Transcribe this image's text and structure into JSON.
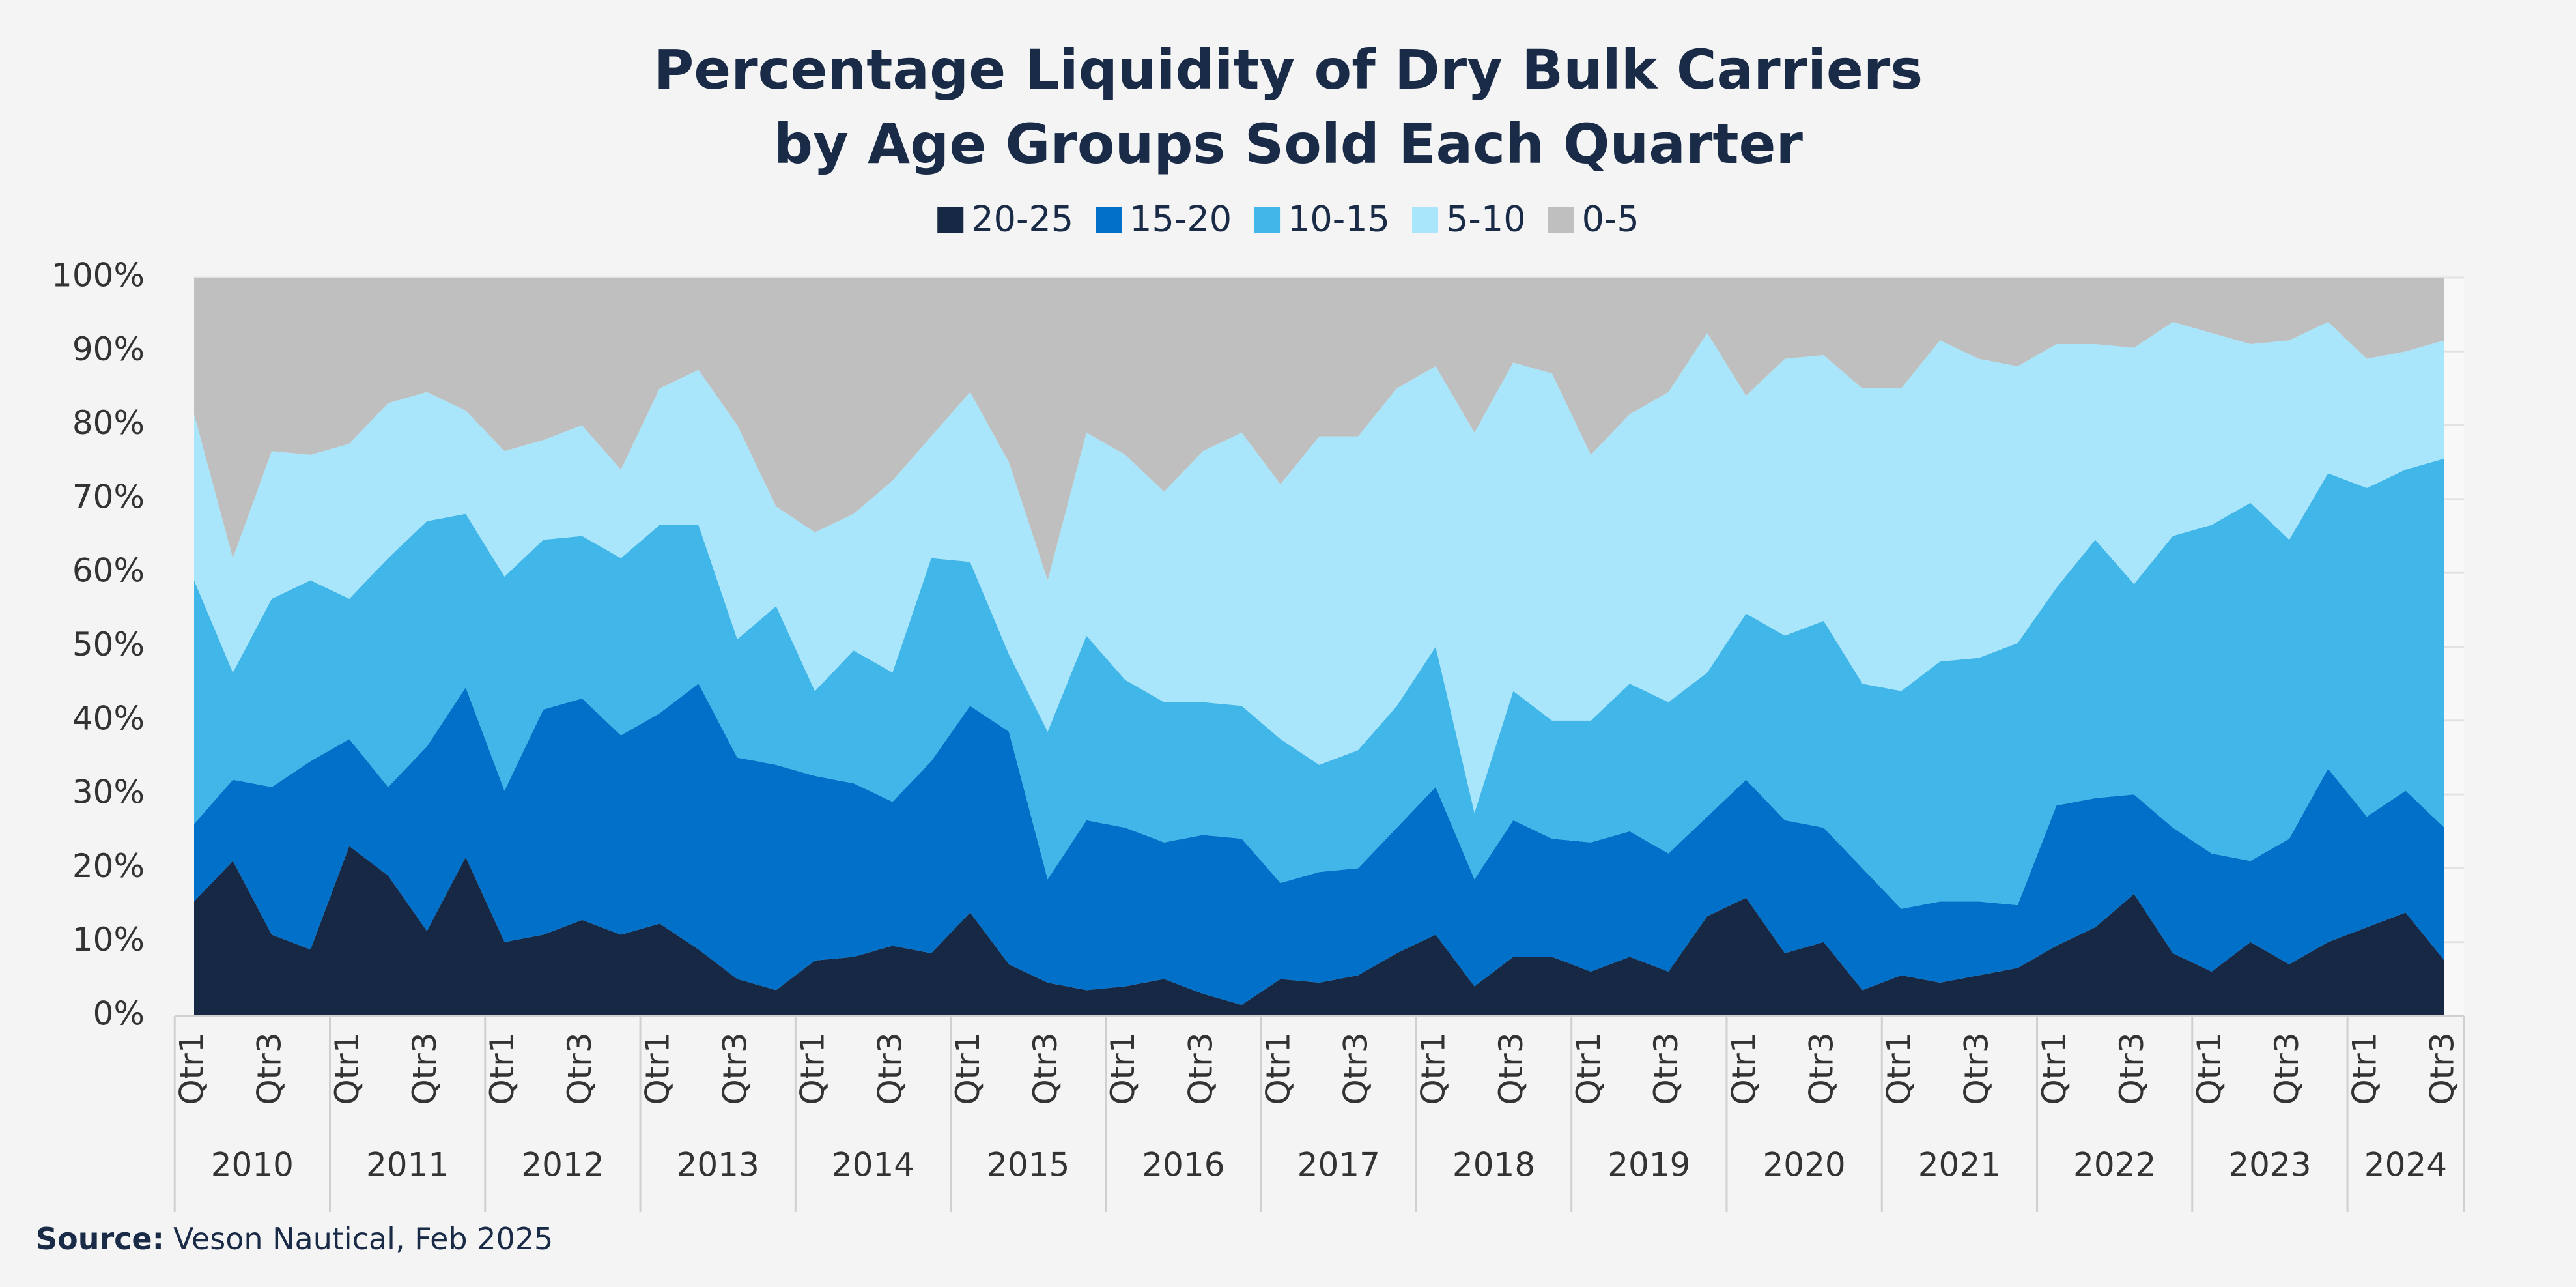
{
  "chart_data": {
    "type": "stacked_area",
    "title": [
      "Percentage Liquidity of Dry Bulk Carriers",
      "by Age Groups Sold Each Quarter"
    ],
    "categories": [
      "Qtr1",
      null,
      "Qtr3",
      null,
      "Qtr1",
      null,
      "Qtr3",
      null,
      "Qtr1",
      null,
      "Qtr3",
      null,
      "Qtr1",
      null,
      "Qtr3",
      null,
      "Qtr1",
      null,
      "Qtr3",
      null,
      "Qtr1",
      null,
      "Qtr3",
      null,
      "Qtr1",
      null,
      "Qtr3",
      null,
      "Qtr1",
      null,
      "Qtr3",
      null,
      "Qtr1",
      null,
      "Qtr3",
      null,
      "Qtr1",
      null,
      "Qtr3",
      null,
      "Qtr1",
      null,
      "Qtr3",
      null,
      "Qtr1",
      null,
      "Qtr3",
      null,
      "Qtr1",
      null,
      "Qtr3",
      null,
      "Qtr1",
      null,
      "Qtr3",
      null,
      "Qtr1",
      null,
      "Qtr3"
    ],
    "year_groups": [
      "2010",
      "2011",
      "2012",
      "2013",
      "2014",
      "2015",
      "2016",
      "2017",
      "2018",
      "2019",
      "2020",
      "2021",
      "2022",
      "2023",
      "2024"
    ],
    "series": [
      {
        "name": "20-25",
        "color": "#162843",
        "values": [
          15.5,
          21,
          11,
          9,
          23,
          19,
          11.5,
          21.5,
          10,
          11,
          13,
          11,
          12.5,
          9,
          5,
          3.5,
          7.5,
          8,
          9.5,
          8.5,
          14,
          7,
          4.5,
          3.5,
          4,
          5,
          3,
          1.5,
          5,
          4.5,
          5.5,
          8.5,
          11,
          4,
          8,
          8,
          6,
          8,
          6,
          13.5,
          16,
          8.5,
          10,
          3.5,
          5.5,
          4.5,
          5.5,
          6.5,
          9.5,
          12,
          16.5,
          8.5,
          6,
          10,
          7,
          10,
          12,
          14,
          7.5
        ]
      },
      {
        "name": "15-20",
        "color": "#0070c8",
        "values": [
          10.5,
          11,
          20,
          25.5,
          14.5,
          12,
          25,
          23,
          20.5,
          30.5,
          30,
          27,
          28.5,
          36,
          30,
          30.5,
          25,
          23.5,
          19.5,
          26,
          28,
          31.5,
          14,
          23,
          21.5,
          18.5,
          21.5,
          22.5,
          13,
          15,
          14.5,
          17,
          20,
          14.5,
          18.5,
          16,
          17.5,
          17,
          16,
          13.5,
          16,
          18,
          15.5,
          16.5,
          9,
          11,
          10,
          8.5,
          19,
          17.5,
          13.5,
          17,
          16,
          11,
          17,
          23.5,
          15,
          16.5,
          18
        ]
      },
      {
        "name": "10-15",
        "color": "#41b6e8",
        "values": [
          33,
          14.5,
          25.5,
          24.5,
          19,
          31,
          30.5,
          23.5,
          29,
          23,
          22,
          24,
          25.5,
          21.5,
          16,
          21.5,
          11.5,
          18,
          17.5,
          27.5,
          19.5,
          10.5,
          20,
          25,
          20,
          19,
          18,
          18,
          19.5,
          14.5,
          16,
          16.5,
          19,
          9,
          17.5,
          16,
          16.5,
          20,
          20.5,
          19.5,
          22.5,
          25,
          28,
          25,
          29.5,
          32.5,
          33,
          35.5,
          29.5,
          35,
          28.5,
          39.5,
          44.5,
          48.5,
          40.5,
          40,
          44.5,
          43.5,
          50
        ]
      },
      {
        "name": "5-10",
        "color": "#a9e6fc",
        "values": [
          22.5,
          15.5,
          20,
          17,
          21,
          21,
          17.5,
          14,
          17,
          13.5,
          15,
          12,
          18.5,
          21,
          29,
          13.5,
          21.5,
          18.5,
          26,
          16.5,
          23,
          26,
          20.5,
          27.5,
          30.5,
          28.5,
          34,
          37,
          34.5,
          44.5,
          42.5,
          43,
          38,
          51.5,
          44.5,
          47,
          36,
          36.5,
          42,
          46,
          29.5,
          37.5,
          36,
          40,
          41,
          43.5,
          40.5,
          37.5,
          33,
          26.5,
          32,
          29,
          26,
          21.5,
          27,
          20.5,
          17.5,
          16,
          16
        ]
      },
      {
        "name": "0-5",
        "color": "#bfbfbf",
        "values": [
          18.5,
          38,
          23.5,
          24,
          22.5,
          17,
          15.5,
          18,
          23.5,
          22,
          20,
          26,
          15,
          12.5,
          20,
          31,
          34.5,
          32,
          27.5,
          21.5,
          15.5,
          25,
          41,
          21,
          24,
          29,
          23.5,
          21,
          28,
          21.5,
          21.5,
          15,
          12,
          21,
          11.5,
          13,
          24,
          18.5,
          15.5,
          7.5,
          16,
          11,
          10.5,
          15,
          15,
          8.5,
          11,
          12,
          9,
          9,
          9.5,
          6,
          7.5,
          9,
          8.5,
          6,
          11,
          10,
          8.5
        ]
      }
    ],
    "ylim": [
      0,
      100
    ],
    "yticks": [
      {
        "value": 0,
        "label": "0%"
      },
      {
        "value": 10,
        "label": "10%"
      },
      {
        "value": 20,
        "label": "20%"
      },
      {
        "value": 30,
        "label": "30%"
      },
      {
        "value": 40,
        "label": "40%"
      },
      {
        "value": 50,
        "label": "50%"
      },
      {
        "value": 60,
        "label": "60%"
      },
      {
        "value": 70,
        "label": "70%"
      },
      {
        "value": 80,
        "label": "80%"
      },
      {
        "value": 90,
        "label": "90%"
      },
      {
        "value": 100,
        "label": "100%"
      }
    ],
    "grid": true,
    "legend": "top",
    "source": {
      "label": "Source:",
      "text": "Veson Nautical, Feb 2025"
    }
  }
}
